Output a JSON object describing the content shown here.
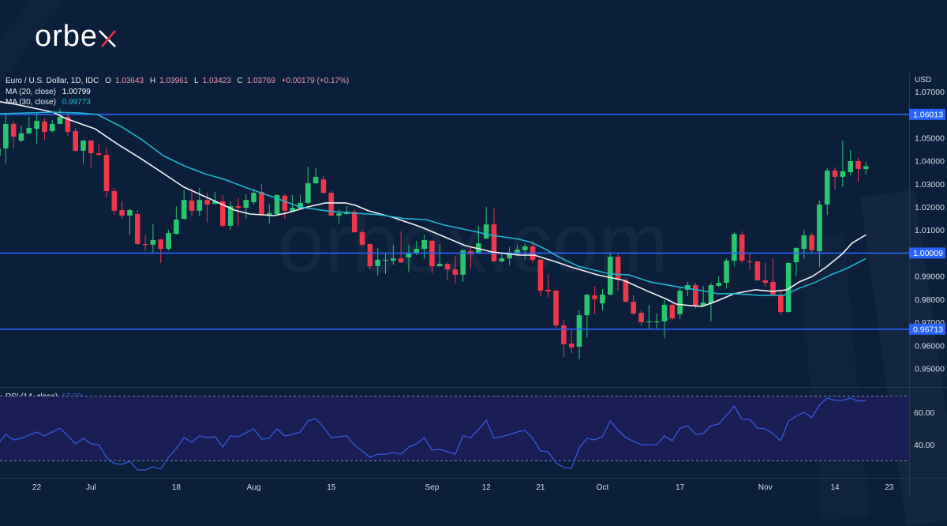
{
  "brand": {
    "logo_text": "orbe",
    "logo_mark": "x",
    "watermark": "orbex.com"
  },
  "legend": {
    "symbol": "Euro / U.S. Dollar, 1D, IDC",
    "ohlc": [
      {
        "k": "O",
        "v": "1.03643"
      },
      {
        "k": "H",
        "v": "1.03961"
      },
      {
        "k": "L",
        "v": "1.03423"
      },
      {
        "k": "C",
        "v": "1.03769"
      }
    ],
    "change": "+0.00179 (+0.17%)",
    "ma20": {
      "label": "MA (20, close)",
      "value": "1.00799"
    },
    "ma30": {
      "label": "MA (30, close)",
      "value": "0.99773"
    }
  },
  "rsi_legend": {
    "label": "RSI (14, close)",
    "value": "67.33"
  },
  "colors": {
    "background": "#0b1f3a",
    "candle_up": "#2bc46f",
    "candle_down": "#f0364a",
    "ma20": "#f2f2f2",
    "ma30": "#1fb4cc",
    "level_line": "#2962ff",
    "level_label_bg": "#2962ff",
    "rsi_line": "#3559e0",
    "rsi_band": "#1b1e55",
    "rsi_level_dash": "#7d84a6",
    "separator": "#26374f",
    "axis_text": "#d8dce6"
  },
  "chart_data": {
    "type": "candlestick",
    "title": "Euro / U.S. Dollar, 1D, IDC",
    "ylabel": "USD",
    "xlabel": "",
    "ylim": [
      0.9421,
      1.0782
    ],
    "grid": false,
    "y_ticks": [
      {
        "value": 1.07,
        "label": "1.07000"
      },
      {
        "value": 1.05,
        "label": "1.05000"
      },
      {
        "value": 1.04,
        "label": "1.04000"
      },
      {
        "value": 1.03,
        "label": "1.03000"
      },
      {
        "value": 1.02,
        "label": "1.02000"
      },
      {
        "value": 1.01,
        "label": "1.01000"
      },
      {
        "value": 0.99,
        "label": "0.99000"
      },
      {
        "value": 0.98,
        "label": "0.98000"
      },
      {
        "value": 0.97,
        "label": "0.97000"
      },
      {
        "value": 0.96,
        "label": "0.96000"
      },
      {
        "value": 0.95,
        "label": "0.95000"
      }
    ],
    "horizontal_levels": [
      {
        "value": 1.06013,
        "label": "1.06013"
      },
      {
        "value": 1.00009,
        "label": "1.00009"
      },
      {
        "value": 0.96713,
        "label": "0.96713"
      }
    ],
    "x_ticks": [
      {
        "label": "22",
        "index": 5
      },
      {
        "label": "Jul",
        "index": 12
      },
      {
        "label": "18",
        "index": 23
      },
      {
        "label": "Aug",
        "index": 33
      },
      {
        "label": "15",
        "index": 43
      },
      {
        "label": "Sep",
        "index": 56
      },
      {
        "label": "12",
        "index": 63
      },
      {
        "label": "21",
        "index": 70
      },
      {
        "label": "Oct",
        "index": 78
      },
      {
        "label": "17",
        "index": 88
      },
      {
        "label": "Nov",
        "index": 99
      },
      {
        "label": "14",
        "index": 108
      },
      {
        "label": "23",
        "index": 115
      }
    ],
    "candles_ohlc": [
      [
        1.0423,
        1.0464,
        1.0413,
        1.0454
      ],
      [
        1.0454,
        1.0601,
        1.0389,
        1.056
      ],
      [
        1.056,
        1.0573,
        1.0454,
        1.0505
      ],
      [
        1.0488,
        1.0553,
        1.0481,
        1.0519
      ],
      [
        1.0519,
        1.0591,
        1.0515,
        1.0543
      ],
      [
        1.0539,
        1.0608,
        1.0474,
        1.0573
      ],
      [
        1.057,
        1.0584,
        1.0491,
        1.0526
      ],
      [
        1.0529,
        1.0577,
        1.0522,
        1.056
      ],
      [
        1.056,
        1.0625,
        1.0558,
        1.0591
      ],
      [
        1.0591,
        1.0611,
        1.0509,
        1.0526
      ],
      [
        1.0529,
        1.0543,
        1.044,
        1.0444
      ],
      [
        1.0444,
        1.0491,
        1.0389,
        1.0488
      ],
      [
        1.0488,
        1.049,
        1.0372,
        1.0433
      ],
      [
        1.0433,
        1.0471,
        1.0423,
        1.0426
      ],
      [
        1.0426,
        1.0457,
        1.0242,
        1.0269
      ],
      [
        1.0269,
        1.0283,
        1.0166,
        1.0184
      ],
      [
        1.0187,
        1.0225,
        1.0149,
        1.0163
      ],
      [
        1.0163,
        1.0194,
        1.0078,
        1.0187
      ],
      [
        1.017,
        1.0187,
        1.0037,
        1.004
      ],
      [
        1.004,
        1.0078,
        1.0009,
        1.0037
      ],
      [
        1.0037,
        1.0125,
        1.0002,
        1.0057
      ],
      [
        1.006,
        1.0062,
        0.9958,
        1.0019
      ],
      [
        1.0019,
        1.0102,
        1.0013,
        1.0088
      ],
      [
        1.0084,
        1.0204,
        1.0081,
        1.0146
      ],
      [
        1.0149,
        1.0273,
        1.0146,
        1.0231
      ],
      [
        1.0228,
        1.0279,
        1.016,
        1.0184
      ],
      [
        1.0184,
        1.0283,
        1.016,
        1.0231
      ],
      [
        1.0231,
        1.0262,
        1.0132,
        1.0211
      ],
      [
        1.0214,
        1.0266,
        1.0212,
        1.0225
      ],
      [
        1.0225,
        1.0252,
        1.0112,
        1.0119
      ],
      [
        1.0119,
        1.0225,
        1.0102,
        1.0204
      ],
      [
        1.0204,
        1.0238,
        1.0119,
        1.0197
      ],
      [
        1.0197,
        1.0255,
        1.0149,
        1.0231
      ],
      [
        1.0221,
        1.0279,
        1.0211,
        1.0262
      ],
      [
        1.0266,
        1.03,
        1.0163,
        1.0166
      ],
      [
        1.0166,
        1.0214,
        1.0129,
        1.0173
      ],
      [
        1.017,
        1.0255,
        1.0166,
        1.0252
      ],
      [
        1.0249,
        1.0256,
        1.0149,
        1.0184
      ],
      [
        1.018,
        1.0252,
        1.0178,
        1.0197
      ],
      [
        1.0194,
        1.0252,
        1.019,
        1.0218
      ],
      [
        1.0218,
        1.0375,
        1.0214,
        1.0303
      ],
      [
        1.0303,
        1.0368,
        1.03,
        1.0331
      ],
      [
        1.032,
        1.0334,
        1.0256,
        1.0262
      ],
      [
        1.0262,
        1.0269,
        1.016,
        1.0163
      ],
      [
        1.0163,
        1.019,
        1.0129,
        1.0173
      ],
      [
        1.017,
        1.0204,
        1.0166,
        1.018
      ],
      [
        1.018,
        1.019,
        1.0088,
        1.0091
      ],
      [
        1.0091,
        1.0098,
        1.0033,
        1.0037
      ],
      [
        1.004,
        1.0043,
        0.993,
        0.9944
      ],
      [
        0.9944,
        1.0023,
        0.9903,
        0.9972
      ],
      [
        0.9968,
        1.0002,
        0.991,
        0.9972
      ],
      [
        0.9968,
        1.0037,
        0.9951,
        0.9978
      ],
      [
        0.9978,
        1.0095,
        0.9958,
        0.9961
      ],
      [
        0.9982,
        1.0037,
        0.9917,
        1.0002
      ],
      [
        0.9999,
        1.0054,
        0.9992,
        1.0019
      ],
      [
        1.0019,
        1.0081,
        0.9975,
        1.0057
      ],
      [
        1.0054,
        1.0056,
        0.9913,
        0.9944
      ],
      [
        0.9944,
        1.0037,
        0.9942,
        0.9954
      ],
      [
        0.9954,
        0.9961,
        0.9883,
        0.993
      ],
      [
        0.993,
        0.9989,
        0.9869,
        0.9907
      ],
      [
        0.9907,
        1.0015,
        0.9876,
        1.0013
      ],
      [
        1.0009,
        1.0026,
        0.9934,
        0.9996
      ],
      [
        0.9999,
        1.0119,
        0.9996,
        1.0043
      ],
      [
        1.0064,
        1.0201,
        1.006,
        1.0125
      ],
      [
        1.0125,
        1.0194,
        0.9961,
        0.9965
      ],
      [
        0.9965,
        0.9996,
        0.9961,
        0.9978
      ],
      [
        0.9978,
        1.0026,
        0.9948,
        0.9996
      ],
      [
        0.9996,
        1.0037,
        0.9992,
        1.0016
      ],
      [
        1.0013,
        1.0043,
        0.9972,
        1.003
      ],
      [
        1.003,
        1.0054,
        0.9958,
        0.9972
      ],
      [
        0.9972,
        0.9975,
        0.9814,
        0.9838
      ],
      [
        0.9842,
        0.991,
        0.9807,
        0.9835
      ],
      [
        0.9838,
        0.984,
        0.9677,
        0.9688
      ],
      [
        0.9688,
        0.9712,
        0.9551,
        0.9606
      ],
      [
        0.9609,
        0.9667,
        0.9568,
        0.9592
      ],
      [
        0.9595,
        0.9753,
        0.9541,
        0.9732
      ],
      [
        0.9732,
        0.9824,
        0.9636,
        0.9821
      ],
      [
        0.9818,
        0.9855,
        0.9736,
        0.9801
      ],
      [
        0.9783,
        0.9845,
        0.9753,
        0.9821
      ],
      [
        0.9821,
        1.0002,
        0.9818,
        0.9985
      ],
      [
        0.9985,
        0.9996,
        0.9838,
        0.9886
      ],
      [
        0.9883,
        0.9893,
        0.9788,
        0.979
      ],
      [
        0.979,
        0.9818,
        0.9732,
        0.9739
      ],
      [
        0.9742,
        0.9753,
        0.9684,
        0.9701
      ],
      [
        0.9701,
        0.9777,
        0.9671,
        0.9705
      ],
      [
        0.9701,
        0.9739,
        0.9671,
        0.9705
      ],
      [
        0.9705,
        0.9797,
        0.9633,
        0.9777
      ],
      [
        0.9777,
        0.9783,
        0.9708,
        0.9718
      ],
      [
        0.9736,
        0.9855,
        0.9715,
        0.9838
      ],
      [
        0.9842,
        0.9876,
        0.9814,
        0.9862
      ],
      [
        0.9862,
        0.9872,
        0.976,
        0.9773
      ],
      [
        0.9773,
        0.9859,
        0.9771,
        0.9787
      ],
      [
        0.9783,
        0.9872,
        0.9705,
        0.9862
      ],
      [
        0.9859,
        0.99,
        0.9855,
        0.9872
      ],
      [
        0.9872,
        0.9978,
        0.9848,
        0.9968
      ],
      [
        0.9968,
        1.0091,
        0.9944,
        1.0084
      ],
      [
        1.0081,
        1.0095,
        0.9958,
        0.9968
      ],
      [
        0.9965,
        1.0002,
        0.9927,
        0.9961
      ],
      [
        0.9965,
        0.9967,
        0.9879,
        0.9883
      ],
      [
        0.9883,
        0.9958,
        0.9855,
        0.9872
      ],
      [
        0.9876,
        0.9978,
        0.9819,
        0.9821
      ],
      [
        0.9821,
        0.9838,
        0.9732,
        0.9746
      ],
      [
        0.9746,
        0.9961,
        0.9742,
        0.9958
      ],
      [
        0.9961,
        1.0026,
        0.99,
        1.0023
      ],
      [
        1.0019,
        1.0102,
        0.9975,
        1.0078
      ],
      [
        1.0078,
        1.0088,
        0.9996,
        1.0013
      ],
      [
        1.0009,
        1.0228,
        0.9941,
        1.0211
      ],
      [
        1.0211,
        1.0368,
        1.0166,
        1.0358
      ],
      [
        1.0358,
        1.0372,
        1.0276,
        1.0331
      ],
      [
        1.0331,
        1.0488,
        1.0286,
        1.0355
      ],
      [
        1.0351,
        1.0447,
        1.0337,
        1.0399
      ],
      [
        1.0399,
        1.0413,
        1.031,
        1.0365
      ],
      [
        1.03643,
        1.03961,
        1.03423,
        1.03769
      ]
    ],
    "series": [
      {
        "name": "MA (20, close)",
        "last": 1.00799,
        "points": [
          [
            0.25,
            1.0656
          ],
          [
            2.3,
            1.0645
          ],
          [
            7.1,
            1.0611
          ],
          [
            8.7,
            1.0584
          ],
          [
            12.5,
            1.0539
          ],
          [
            15.5,
            1.0471
          ],
          [
            18.3,
            1.0413
          ],
          [
            20.6,
            1.0362
          ],
          [
            24.0,
            1.0286
          ],
          [
            27.4,
            1.0235
          ],
          [
            30.5,
            1.0187
          ],
          [
            32.5,
            1.017
          ],
          [
            35.6,
            1.0163
          ],
          [
            37.2,
            1.0174
          ],
          [
            40.0,
            1.0201
          ],
          [
            42.3,
            1.0218
          ],
          [
            44.8,
            1.0218
          ],
          [
            46.1,
            1.0208
          ],
          [
            47.8,
            1.0184
          ],
          [
            50.9,
            1.0156
          ],
          [
            54.5,
            1.0115
          ],
          [
            57.6,
            1.0071
          ],
          [
            60.3,
            1.0033
          ],
          [
            63.7,
            1.0006
          ],
          [
            67.2,
            0.9992
          ],
          [
            69.2,
            0.9992
          ],
          [
            71.5,
            0.9968
          ],
          [
            73.9,
            0.9941
          ],
          [
            77.3,
            0.9907
          ],
          [
            80.7,
            0.9883
          ],
          [
            84.1,
            0.9832
          ],
          [
            86.1,
            0.9804
          ],
          [
            87.5,
            0.978
          ],
          [
            89.2,
            0.9774
          ],
          [
            90.9,
            0.977
          ],
          [
            92.6,
            0.9791
          ],
          [
            95.0,
            0.9825
          ],
          [
            97.7,
            0.9842
          ],
          [
            100.0,
            0.9835
          ],
          [
            101.8,
            0.9842
          ],
          [
            103.4,
            0.9876
          ],
          [
            105.1,
            0.99
          ],
          [
            106.9,
            0.9941
          ],
          [
            108.9,
            0.9996
          ],
          [
            110.2,
            1.0044
          ],
          [
            112,
            1.00799
          ]
        ]
      },
      {
        "name": "MA (30, close)",
        "last": 0.99773,
        "points": [
          [
            0.25,
            1.0604
          ],
          [
            7.1,
            1.0611
          ],
          [
            10.4,
            1.0608
          ],
          [
            12.8,
            1.0601
          ],
          [
            15.8,
            1.055
          ],
          [
            18.6,
            1.0491
          ],
          [
            21.3,
            1.0423
          ],
          [
            24.0,
            1.0379
          ],
          [
            26.7,
            1.0344
          ],
          [
            29.1,
            1.0321
          ],
          [
            32.1,
            1.0283
          ],
          [
            35.6,
            1.0242
          ],
          [
            38.9,
            1.0201
          ],
          [
            42.3,
            1.0184
          ],
          [
            45.8,
            1.0174
          ],
          [
            49.1,
            1.0167
          ],
          [
            52.5,
            1.015
          ],
          [
            55.2,
            1.0146
          ],
          [
            57.6,
            1.0122
          ],
          [
            61.4,
            1.0095
          ],
          [
            63.7,
            1.0078
          ],
          [
            67.2,
            1.0061
          ],
          [
            68.8,
            1.0047
          ],
          [
            70.5,
            1.002
          ],
          [
            72.3,
            0.9985
          ],
          [
            74.9,
            0.9944
          ],
          [
            77.3,
            0.9924
          ],
          [
            79.0,
            0.991
          ],
          [
            81.4,
            0.9907
          ],
          [
            84.1,
            0.9876
          ],
          [
            87.5,
            0.9856
          ],
          [
            90.9,
            0.9838
          ],
          [
            92.9,
            0.9825
          ],
          [
            95.0,
            0.9825
          ],
          [
            98.3,
            0.9818
          ],
          [
            101.4,
            0.9818
          ],
          [
            103.4,
            0.9849
          ],
          [
            105.4,
            0.9873
          ],
          [
            107.5,
            0.9907
          ],
          [
            109.5,
            0.9934
          ],
          [
            112,
            0.99773
          ]
        ]
      }
    ],
    "rsi": {
      "name": "RSI (14, close)",
      "last": 67.33,
      "ylim": [
        19.5,
        75.6
      ],
      "levels": [
        70,
        30
      ],
      "ticks": [
        {
          "value": 60,
          "label": "60.00"
        },
        {
          "value": 40,
          "label": "40.00"
        }
      ],
      "values": [
        40.5,
        46.3,
        42.9,
        43.9,
        45.9,
        47.8,
        45.4,
        47.8,
        50.2,
        45.4,
        40.5,
        43.9,
        40.5,
        40.0,
        32.2,
        28.3,
        27.8,
        29.8,
        24.4,
        24.4,
        26.3,
        24.9,
        32.2,
        37.6,
        44.4,
        41.5,
        45.4,
        44.4,
        44.9,
        38.5,
        45.4,
        44.9,
        47.3,
        49.8,
        43.4,
        43.9,
        49.8,
        45.4,
        46.3,
        47.8,
        54.6,
        56.1,
        50.7,
        44.4,
        44.9,
        45.4,
        39.5,
        36.1,
        32.2,
        34.1,
        34.1,
        35.1,
        34.1,
        38.5,
        40.5,
        44.4,
        36.6,
        37.1,
        35.6,
        34.1,
        45.4,
        44.4,
        49.3,
        55.1,
        43.9,
        44.9,
        46.3,
        47.8,
        48.8,
        43.9,
        36.1,
        35.6,
        28.8,
        25.9,
        25.4,
        38.0,
        43.9,
        42.9,
        44.9,
        54.6,
        48.8,
        44.4,
        42.0,
        40.0,
        40.0,
        40.0,
        45.4,
        42.4,
        50.2,
        51.7,
        46.3,
        46.8,
        51.7,
        52.7,
        58.0,
        63.9,
        55.6,
        55.6,
        50.2,
        49.8,
        46.8,
        42.4,
        54.6,
        57.6,
        60.0,
        56.6,
        64.4,
        68.8,
        67.3,
        67.3,
        68.8,
        66.8,
        67.33
      ]
    }
  }
}
